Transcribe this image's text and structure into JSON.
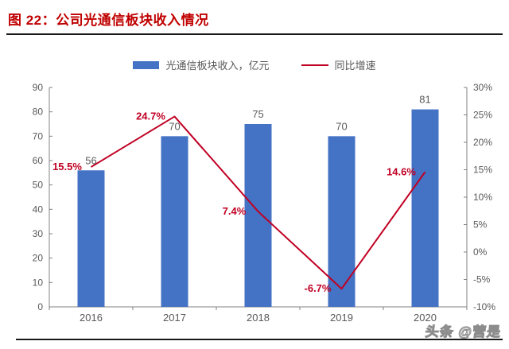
{
  "figure": {
    "title": "图 22：公司光通信板块收入情况"
  },
  "legend": {
    "items": [
      {
        "label": "光通信板块收入，亿元"
      },
      {
        "label": "同比增速"
      }
    ]
  },
  "watermark": {
    "text": "头条 @营是"
  },
  "colors": {
    "title": "#C00000",
    "bar": "#4472C4",
    "line": "#C00023",
    "axis": "#808080",
    "tick_text": "#595959",
    "divider": "#1A1A1A"
  },
  "chart_data": {
    "type": "bar",
    "combo": "bar+line",
    "title": "公司光通信板块收入情况",
    "categories": [
      "2016",
      "2017",
      "2018",
      "2019",
      "2020"
    ],
    "series": [
      {
        "name": "光通信板块收入，亿元",
        "type": "bar",
        "axis": "left",
        "values": [
          56,
          70,
          75,
          70,
          81
        ],
        "value_labels": [
          "56",
          "70",
          "75",
          "70",
          "81"
        ],
        "color": "#4472C4"
      },
      {
        "name": "同比增速",
        "type": "line",
        "axis": "right",
        "unit": "%",
        "values": [
          15.5,
          24.7,
          7.4,
          -6.7,
          14.6
        ],
        "value_labels": [
          "15.5%",
          "24.7%",
          "7.4%",
          "-6.7%",
          "14.6%"
        ],
        "color": "#C00023"
      }
    ],
    "left_axis": {
      "min": 0,
      "max": 90,
      "step": 10,
      "tick_labels": [
        "0",
        "10",
        "20",
        "30",
        "40",
        "50",
        "60",
        "70",
        "80",
        "90"
      ]
    },
    "right_axis": {
      "min": -10,
      "max": 30,
      "step": 5,
      "tick_labels": [
        "-10%",
        "-5%",
        "0%",
        "5%",
        "10%",
        "15%",
        "20%",
        "25%",
        "30%"
      ]
    },
    "grid": false,
    "legend_position": "top"
  }
}
